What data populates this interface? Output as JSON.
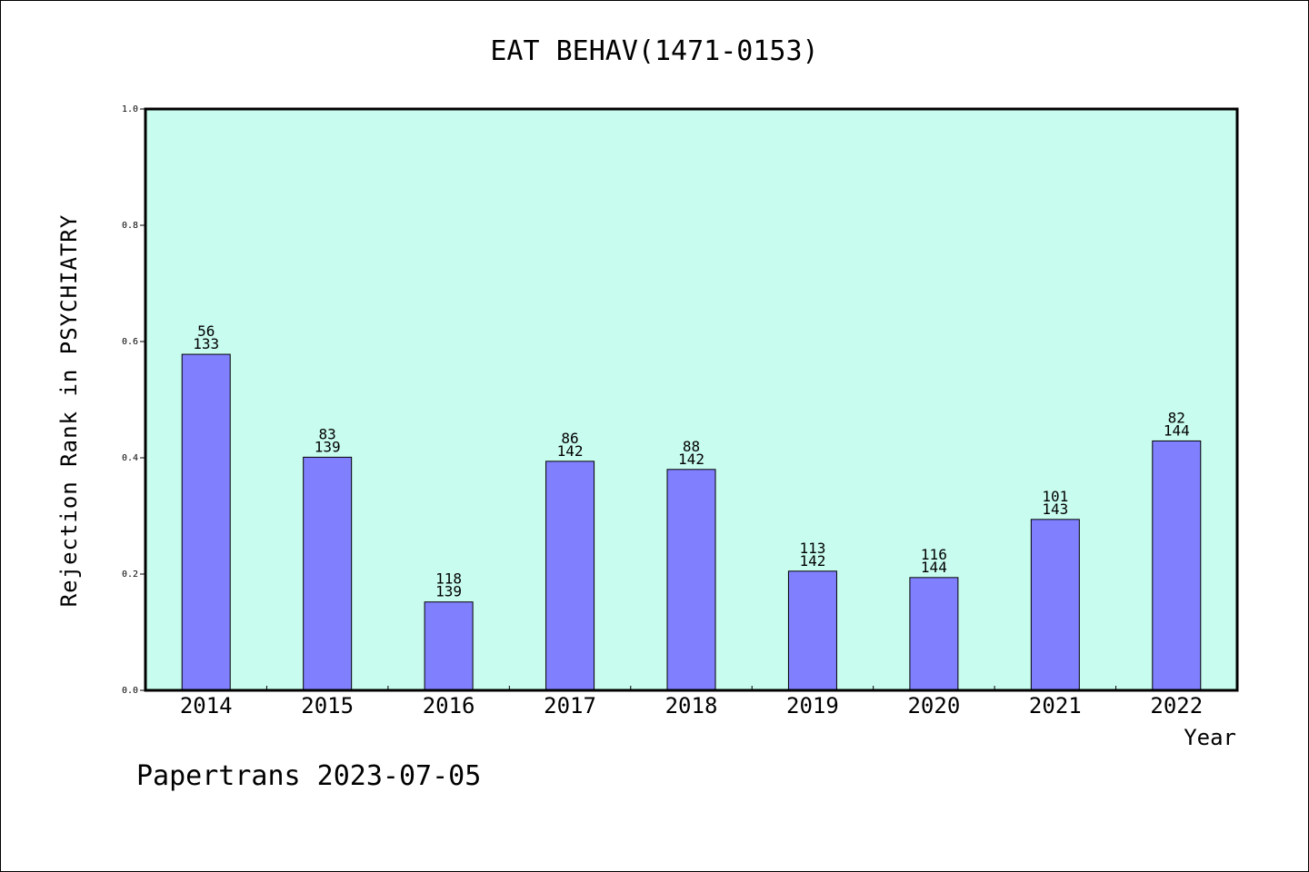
{
  "chart_data": {
    "type": "bar",
    "title": "EAT BEHAV(1471-0153)",
    "xlabel": "Year",
    "ylabel": "Rejection Rank in PSYCHIATRY",
    "ylim": [
      0,
      1.0
    ],
    "yticks": [
      "0.0",
      "0.2",
      "0.4",
      "0.6",
      "0.8",
      "1.0"
    ],
    "categories": [
      "2014",
      "2015",
      "2016",
      "2017",
      "2018",
      "2019",
      "2020",
      "2021",
      "2022"
    ],
    "values": [
      0.578,
      0.401,
      0.152,
      0.394,
      0.38,
      0.205,
      0.194,
      0.294,
      0.429
    ],
    "rank_labels": [
      "56",
      "83",
      "118",
      "86",
      "88",
      "113",
      "116",
      "101",
      "82"
    ],
    "total_labels": [
      "133",
      "139",
      "139",
      "142",
      "142",
      "142",
      "144",
      "143",
      "144"
    ],
    "grid": false,
    "colors": {
      "plot_background": "#c8fcee",
      "bar_fill": "#8080ff",
      "bar_stroke": "#000000"
    }
  },
  "footer": {
    "text": "Papertrans 2023-07-05"
  }
}
